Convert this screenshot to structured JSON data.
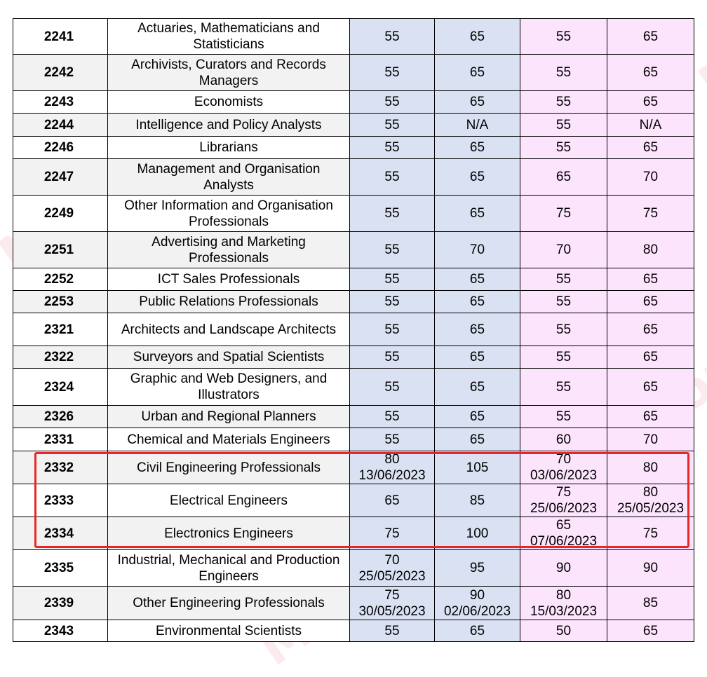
{
  "rows": [
    {
      "code": "2241",
      "name": "Actuaries, Mathematicians and Statisticians",
      "c1": "55",
      "c1b": "",
      "c2": "65",
      "c2b": "",
      "c3": "55",
      "c3b": "",
      "c4": "65",
      "c4b": ""
    },
    {
      "code": "2242",
      "name": "Archivists, Curators and Records Managers",
      "c1": "55",
      "c1b": "",
      "c2": "65",
      "c2b": "",
      "c3": "55",
      "c3b": "",
      "c4": "65",
      "c4b": ""
    },
    {
      "code": "2243",
      "name": "Economists",
      "c1": "55",
      "c1b": "",
      "c2": "65",
      "c2b": "",
      "c3": "55",
      "c3b": "",
      "c4": "65",
      "c4b": ""
    },
    {
      "code": "2244",
      "name": "Intelligence and Policy Analysts",
      "c1": "55",
      "c1b": "",
      "c2": "N/A",
      "c2b": "",
      "c3": "55",
      "c3b": "",
      "c4": "N/A",
      "c4b": ""
    },
    {
      "code": "2246",
      "name": "Librarians",
      "c1": "55",
      "c1b": "",
      "c2": "65",
      "c2b": "",
      "c3": "55",
      "c3b": "",
      "c4": "65",
      "c4b": ""
    },
    {
      "code": "2247",
      "name": "Management and Organisation Analysts",
      "c1": "55",
      "c1b": "",
      "c2": "65",
      "c2b": "",
      "c3": "65",
      "c3b": "",
      "c4": "70",
      "c4b": ""
    },
    {
      "code": "2249",
      "name": "Other Information and Organisation Professionals",
      "c1": "55",
      "c1b": "",
      "c2": "65",
      "c2b": "",
      "c3": "75",
      "c3b": "",
      "c4": "75",
      "c4b": ""
    },
    {
      "code": "2251",
      "name": "Advertising and Marketing Professionals",
      "c1": "55",
      "c1b": "",
      "c2": "70",
      "c2b": "",
      "c3": "70",
      "c3b": "",
      "c4": "80",
      "c4b": ""
    },
    {
      "code": "2252",
      "name": "ICT Sales Professionals",
      "c1": "55",
      "c1b": "",
      "c2": "65",
      "c2b": "",
      "c3": "55",
      "c3b": "",
      "c4": "65",
      "c4b": ""
    },
    {
      "code": "2253",
      "name": "Public Relations Professionals",
      "c1": "55",
      "c1b": "",
      "c2": "65",
      "c2b": "",
      "c3": "55",
      "c3b": "",
      "c4": "65",
      "c4b": ""
    },
    {
      "code": "2321",
      "name": "Architects and Landscape Architects",
      "c1": "55",
      "c1b": "",
      "c2": "65",
      "c2b": "",
      "c3": "55",
      "c3b": "",
      "c4": "65",
      "c4b": ""
    },
    {
      "code": "2322",
      "name": "Surveyors and Spatial Scientists",
      "c1": "55",
      "c1b": "",
      "c2": "65",
      "c2b": "",
      "c3": "55",
      "c3b": "",
      "c4": "65",
      "c4b": ""
    },
    {
      "code": "2324",
      "name": "Graphic and Web Designers, and Illustrators",
      "c1": "55",
      "c1b": "",
      "c2": "65",
      "c2b": "",
      "c3": "55",
      "c3b": "",
      "c4": "65",
      "c4b": ""
    },
    {
      "code": "2326",
      "name": "Urban and Regional Planners",
      "c1": "55",
      "c1b": "",
      "c2": "65",
      "c2b": "",
      "c3": "55",
      "c3b": "",
      "c4": "65",
      "c4b": ""
    },
    {
      "code": "2331",
      "name": "Chemical and Materials Engineers",
      "c1": "55",
      "c1b": "",
      "c2": "65",
      "c2b": "",
      "c3": "60",
      "c3b": "",
      "c4": "70",
      "c4b": ""
    },
    {
      "code": "2332",
      "name": "Civil Engineering Professionals",
      "c1": "80",
      "c1b": "13/06/2023",
      "c2": "105",
      "c2b": "",
      "c3": "70",
      "c3b": "03/06/2023",
      "c4": "80",
      "c4b": ""
    },
    {
      "code": "2333",
      "name": "Electrical Engineers",
      "c1": "65",
      "c1b": "",
      "c2": "85",
      "c2b": "",
      "c3": "75",
      "c3b": "25/06/2023",
      "c4": "80",
      "c4b": "25/05/2023"
    },
    {
      "code": "2334",
      "name": "Electronics Engineers",
      "c1": "75",
      "c1b": "",
      "c2": "100",
      "c2b": "",
      "c3": "65",
      "c3b": "07/06/2023",
      "c4": "75",
      "c4b": ""
    },
    {
      "code": "2335",
      "name": "Industrial, Mechanical and Production Engineers",
      "c1": "70",
      "c1b": "25/05/2023",
      "c2": "95",
      "c2b": "",
      "c3": "90",
      "c3b": "",
      "c4": "90",
      "c4b": ""
    },
    {
      "code": "2339",
      "name": "Other Engineering Professionals",
      "c1": "75",
      "c1b": "30/05/2023",
      "c2": "90",
      "c2b": "02/06/2023",
      "c3": "80",
      "c3b": "15/03/2023",
      "c4": "85",
      "c4b": ""
    },
    {
      "code": "2343",
      "name": "Environmental Scientists",
      "c1": "55",
      "c1b": "",
      "c2": "65",
      "c2b": "",
      "c3": "50",
      "c3b": "",
      "c4": "65",
      "c4b": ""
    }
  ],
  "watermark": {
    "brand": "Monkey King",
    "cjk": "移民留学",
    "color_brand": "#e63c50"
  },
  "highlight_color": "#e8262a"
}
